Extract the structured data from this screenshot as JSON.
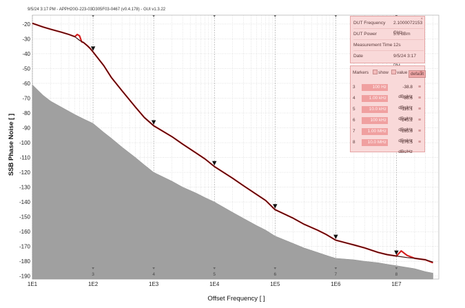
{
  "header": {
    "text": "9/5/24 3:17 PM - APPH20G-223-03D305F03-0467 (v0.4.178) - GUI v1.3.22"
  },
  "info": {
    "close_glyph": "×",
    "rows": [
      {
        "key": "DUT Frequency",
        "value": "2.1000072153 GHz"
      },
      {
        "key": "DUT Power",
        "value": "5.6 dBm"
      },
      {
        "key": "Measurement Time",
        "value": "12s"
      },
      {
        "key": "Date",
        "value": "9/5/24 3:17 PM"
      }
    ]
  },
  "markers_panel": {
    "title": "Markers",
    "show_label": "show",
    "value_label": "value",
    "default_label": "default",
    "rows": [
      {
        "id": "3",
        "freq": "100 Hz",
        "value": "-38.8 dBc/Hz"
      },
      {
        "id": "4",
        "freq": "1.00 kHz",
        "value": "-88.6 dBc/Hz"
      },
      {
        "id": "5",
        "freq": "10.0 kHz",
        "value": "-116.1 dBc/Hz"
      },
      {
        "id": "6",
        "freq": "100 kHz",
        "value": "-145.2 dBc/Hz"
      },
      {
        "id": "7",
        "freq": "1.00 MHz",
        "value": "-165.8 dBc/Hz"
      },
      {
        "id": "8",
        "freq": "10.0 MHz",
        "value": "-176.5 dBc/Hz"
      }
    ]
  },
  "chart_data": {
    "type": "line",
    "xlabel": "Offset Frequency [ ]",
    "ylabel": "SSB Phase Noise [ ]",
    "x_scale": "log",
    "xlim": [
      10,
      50000000
    ],
    "ylim": [
      -192,
      -14
    ],
    "x_ticks": [
      {
        "value": 10,
        "label": "1E1"
      },
      {
        "value": 100,
        "label": "1E2"
      },
      {
        "value": 1000,
        "label": "1E3"
      },
      {
        "value": 10000,
        "label": "1E4"
      },
      {
        "value": 100000,
        "label": "1E5"
      },
      {
        "value": 1000000,
        "label": "1E6"
      },
      {
        "value": 10000000,
        "label": "1E7"
      }
    ],
    "y_ticks": [
      -20,
      -30,
      -40,
      -50,
      -60,
      -70,
      -80,
      -90,
      -100,
      -110,
      -120,
      -130,
      -140,
      -150,
      -160,
      -170,
      -180,
      -190
    ],
    "grid": true,
    "series": [
      {
        "color": "#d41e1e",
        "style": "line",
        "x": [
          10,
          15,
          20,
          30,
          40,
          50,
          55,
          60,
          65,
          70,
          80,
          90,
          100,
          150,
          200,
          300,
          500,
          700,
          1000,
          2000,
          3000,
          5000,
          7000,
          10000,
          20000,
          30000,
          50000,
          70000,
          100000,
          200000,
          300000,
          500000,
          700000,
          1000000,
          2000000,
          3000000,
          5000000,
          7000000,
          10000000,
          12000000,
          15000000,
          20000000,
          30000000,
          40000000
        ],
        "y": [
          -19.5,
          -22,
          -23.5,
          -25.5,
          -27,
          -28.5,
          -27,
          -28,
          -32,
          -32.5,
          -34.5,
          -36.5,
          -38.8,
          -48,
          -56,
          -65,
          -76,
          -83,
          -88.6,
          -96,
          -101,
          -107,
          -111,
          -116.1,
          -124,
          -129,
          -135,
          -139,
          -145.2,
          -151,
          -155,
          -159,
          -162,
          -165.8,
          -169,
          -171,
          -174,
          -175.5,
          -176.5,
          -173,
          -176,
          -178,
          -179,
          -181
        ]
      },
      {
        "color": "#3a0a0a",
        "style": "line",
        "x": [
          10,
          15,
          20,
          30,
          40,
          50,
          60,
          70,
          80,
          90,
          100,
          150,
          200,
          300,
          500,
          700,
          1000,
          2000,
          3000,
          5000,
          7000,
          10000,
          20000,
          30000,
          50000,
          70000,
          100000,
          200000,
          300000,
          500000,
          700000,
          1000000,
          2000000,
          3000000,
          5000000,
          7000000,
          10000000,
          15000000,
          20000000,
          30000000,
          40000000
        ],
        "y": [
          -19.5,
          -22,
          -23.5,
          -25.5,
          -27,
          -28.5,
          -31,
          -32.5,
          -34.5,
          -36.5,
          -38.8,
          -48,
          -56,
          -65,
          -76,
          -83,
          -88.6,
          -96,
          -101,
          -107,
          -111,
          -116.1,
          -124,
          -129,
          -135,
          -139,
          -145.2,
          -151,
          -155,
          -159,
          -162,
          -165.8,
          -169,
          -171,
          -174,
          -175.5,
          -176.5,
          -177.5,
          -178,
          -179,
          -180.5
        ]
      },
      {
        "color": "#a0a0a0",
        "style": "area",
        "x": [
          10,
          15,
          20,
          30,
          50,
          70,
          100,
          150,
          200,
          300,
          500,
          700,
          1000,
          2000,
          3000,
          5000,
          7000,
          10000,
          20000,
          30000,
          50000,
          70000,
          100000,
          200000,
          300000,
          500000,
          700000,
          1000000,
          2000000,
          3000000,
          5000000,
          7000000,
          10000000,
          20000000,
          30000000,
          40000000
        ],
        "y": [
          -61,
          -68,
          -72,
          -76,
          -81,
          -84,
          -87,
          -93,
          -97,
          -103,
          -110,
          -115,
          -120,
          -126,
          -130,
          -134,
          -137,
          -140,
          -147,
          -151,
          -156,
          -159,
          -163,
          -168,
          -171,
          -174,
          -176,
          -178,
          -179,
          -180,
          -181,
          -182,
          -183,
          -185,
          -187,
          -188
        ]
      }
    ],
    "markers": [
      {
        "x": 100,
        "y": -38.8,
        "label": "3"
      },
      {
        "x": 1000,
        "y": -88.6,
        "label": "4"
      },
      {
        "x": 10000,
        "y": -116.1,
        "label": "5"
      },
      {
        "x": 100000,
        "y": -145.2,
        "label": "6"
      },
      {
        "x": 1000000,
        "y": -165.8,
        "label": "7"
      },
      {
        "x": 10000000,
        "y": -176.5,
        "label": "8"
      }
    ]
  }
}
